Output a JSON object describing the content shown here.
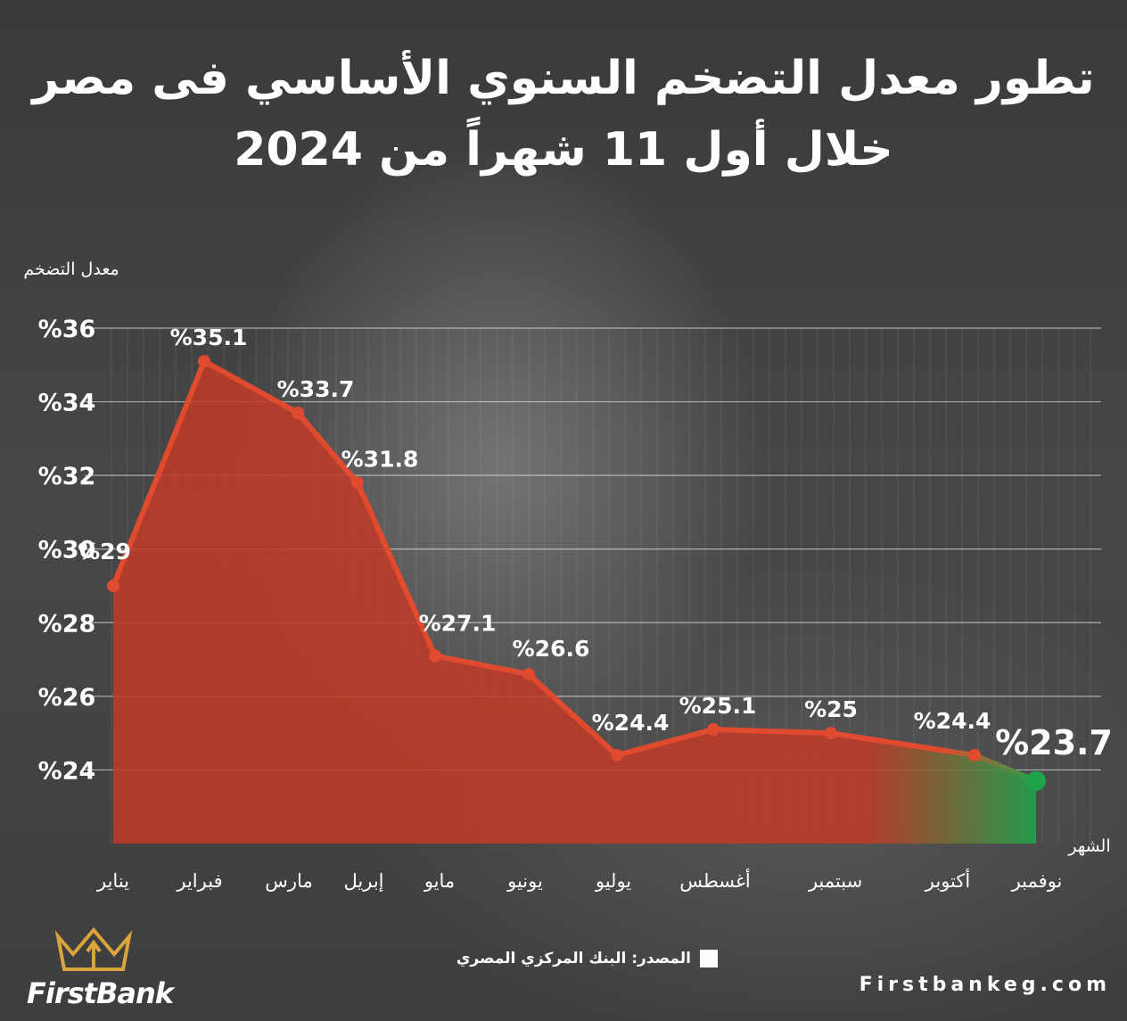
{
  "title": {
    "line1": "تطور معدل التضخم السنوي الأساسي فى مصر",
    "line2": "خلال أول 11 شهراً من 2024"
  },
  "chart_data": {
    "type": "area",
    "y_axis_title": "معدل التضخم",
    "x_axis_title": "الشهر",
    "categories": [
      "يناير",
      "فبراير",
      "مارس",
      "إبريل",
      "مايو",
      "يونيو",
      "يوليو",
      "أغسطس",
      "سبتمبر",
      "أكتوبر",
      "نوفمبر"
    ],
    "values": [
      29,
      35.1,
      33.7,
      31.8,
      27.1,
      26.6,
      24.4,
      25.1,
      25,
      24.4,
      23.7
    ],
    "data_labels": [
      "%29",
      "%35.1",
      "%33.7",
      "%31.8",
      "%27.1",
      "%26.6",
      "%24.4",
      "%25.1",
      "%25",
      "%24.4",
      "%23.7"
    ],
    "y_ticks": [
      24,
      26,
      28,
      30,
      32,
      34,
      36
    ],
    "y_tick_labels": [
      "%24",
      "%26",
      "%28",
      "%30",
      "%32",
      "%34",
      "%36"
    ],
    "ylim": [
      22,
      36
    ],
    "grid": true,
    "colors": {
      "line": "#e04a2e",
      "fill": "#c23a26",
      "highlight": "#1fa34a"
    }
  },
  "footer": {
    "source": "المصدر: البنك المركزي المصري",
    "brand": "FirstBank",
    "website": "Firstbankeg.com"
  }
}
